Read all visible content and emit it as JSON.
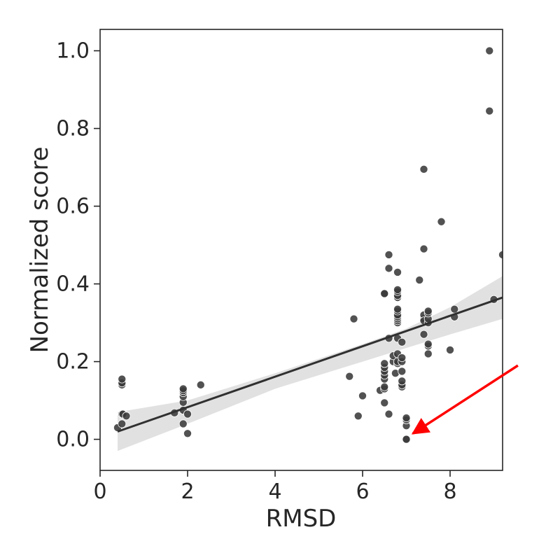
{
  "chart_data": {
    "type": "scatter",
    "title": "",
    "xlabel": "RMSD",
    "ylabel": "Normalized score",
    "xlim": [
      0,
      9.2
    ],
    "ylim": [
      -0.08,
      1.055
    ],
    "x_ticks": [
      0,
      2,
      4,
      6,
      8
    ],
    "x_tick_labels": [
      "0",
      "2",
      "4",
      "6",
      "8"
    ],
    "y_ticks": [
      0.0,
      0.2,
      0.4,
      0.6,
      0.8,
      1.0
    ],
    "y_tick_labels": [
      "0.0",
      "0.2",
      "0.4",
      "0.6",
      "0.8",
      "1.0"
    ],
    "grid": false,
    "point_color": "#3a3a3a",
    "fit_line_color": "#303030",
    "ci_band_color": "#dcdcdc",
    "annotation_arrow_color": "#ff0000",
    "points": [
      [
        0.4,
        0.03
      ],
      [
        0.5,
        0.04
      ],
      [
        0.5,
        0.065
      ],
      [
        0.52,
        0.065
      ],
      [
        0.6,
        0.06
      ],
      [
        0.5,
        0.14
      ],
      [
        0.5,
        0.145
      ],
      [
        0.5,
        0.155
      ],
      [
        1.7,
        0.068
      ],
      [
        1.9,
        0.075
      ],
      [
        1.9,
        0.04
      ],
      [
        1.9,
        0.095
      ],
      [
        1.9,
        0.11
      ],
      [
        1.9,
        0.12
      ],
      [
        1.9,
        0.125
      ],
      [
        1.9,
        0.13
      ],
      [
        2.0,
        0.065
      ],
      [
        2.0,
        0.015
      ],
      [
        2.3,
        0.14
      ],
      [
        5.7,
        0.162
      ],
      [
        5.8,
        0.31
      ],
      [
        5.9,
        0.06
      ],
      [
        6.0,
        0.112
      ],
      [
        6.4,
        0.126
      ],
      [
        6.5,
        0.094
      ],
      [
        6.5,
        0.13
      ],
      [
        6.5,
        0.135
      ],
      [
        6.5,
        0.155
      ],
      [
        6.5,
        0.165
      ],
      [
        6.5,
        0.175
      ],
      [
        6.5,
        0.185
      ],
      [
        6.5,
        0.195
      ],
      [
        6.5,
        0.375
      ],
      [
        6.5,
        0.375
      ],
      [
        6.6,
        0.065
      ],
      [
        6.6,
        0.26
      ],
      [
        6.6,
        0.44
      ],
      [
        6.6,
        0.475
      ],
      [
        6.7,
        0.2
      ],
      [
        6.7,
        0.215
      ],
      [
        6.75,
        0.17
      ],
      [
        6.8,
        0.195
      ],
      [
        6.8,
        0.2
      ],
      [
        6.8,
        0.22
      ],
      [
        6.8,
        0.26
      ],
      [
        6.8,
        0.3
      ],
      [
        6.8,
        0.305
      ],
      [
        6.8,
        0.31
      ],
      [
        6.8,
        0.315
      ],
      [
        6.8,
        0.32
      ],
      [
        6.8,
        0.33
      ],
      [
        6.8,
        0.335
      ],
      [
        6.8,
        0.365
      ],
      [
        6.8,
        0.37
      ],
      [
        6.8,
        0.38
      ],
      [
        6.8,
        0.385
      ],
      [
        6.8,
        0.43
      ],
      [
        6.9,
        0.135
      ],
      [
        6.9,
        0.14
      ],
      [
        6.9,
        0.15
      ],
      [
        6.9,
        0.175
      ],
      [
        6.9,
        0.2
      ],
      [
        6.9,
        0.21
      ],
      [
        6.9,
        0.25
      ],
      [
        7.0,
        0.0
      ],
      [
        7.0,
        0.0
      ],
      [
        7.0,
        0.035
      ],
      [
        7.0,
        0.05
      ],
      [
        7.0,
        0.055
      ],
      [
        7.3,
        0.41
      ],
      [
        7.4,
        0.31
      ],
      [
        7.4,
        0.32
      ],
      [
        7.4,
        0.305
      ],
      [
        7.4,
        0.27
      ],
      [
        7.4,
        0.49
      ],
      [
        7.4,
        0.695
      ],
      [
        7.5,
        0.22
      ],
      [
        7.5,
        0.24
      ],
      [
        7.5,
        0.245
      ],
      [
        7.5,
        0.3
      ],
      [
        7.5,
        0.31
      ],
      [
        7.5,
        0.325
      ],
      [
        7.5,
        0.33
      ],
      [
        7.8,
        0.56
      ],
      [
        8.0,
        0.23
      ],
      [
        8.1,
        0.315
      ],
      [
        8.1,
        0.335
      ],
      [
        8.9,
        0.845
      ],
      [
        8.9,
        1.0
      ],
      [
        9.0,
        0.36
      ],
      [
        9.2,
        0.475
      ]
    ],
    "fit_line": {
      "x": [
        0.4,
        9.2
      ],
      "y": [
        0.02,
        0.365
      ]
    },
    "confidence_band": {
      "x": [
        0.4,
        2.0,
        4.0,
        6.0,
        7.0,
        8.0,
        9.2
      ],
      "lower": [
        -0.03,
        0.04,
        0.13,
        0.2,
        0.235,
        0.27,
        0.31
      ],
      "upper": [
        0.07,
        0.1,
        0.17,
        0.245,
        0.285,
        0.34,
        0.42
      ]
    },
    "annotation_arrow": {
      "from": [
        9.55,
        0.19
      ],
      "to": [
        7.15,
        0.015
      ]
    }
  }
}
